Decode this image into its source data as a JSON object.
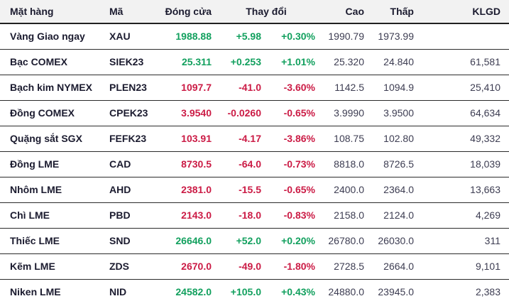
{
  "colors": {
    "up": "#12a05e",
    "down": "#cb1b45",
    "header_bg": "#f2f2f2",
    "border_dark": "#212121",
    "border_row": "#2b2b2b",
    "text_dark": "#1b1b2f",
    "text_gray": "#3d3d52"
  },
  "table": {
    "columns": [
      {
        "key": "name",
        "label": "Mặt hàng"
      },
      {
        "key": "code",
        "label": "Mã"
      },
      {
        "key": "close",
        "label": "Đóng cửa"
      },
      {
        "key": "change",
        "label": "Thay đổi"
      },
      {
        "key": "high",
        "label": "Cao"
      },
      {
        "key": "low",
        "label": "Thấp"
      },
      {
        "key": "volume",
        "label": "KLGD"
      }
    ],
    "rows": [
      {
        "name": "Vàng Giao ngay",
        "code": "XAU",
        "close": "1988.88",
        "change": "+5.98",
        "change_pct": "+0.30%",
        "high": "1990.79",
        "low": "1973.99",
        "volume": "",
        "direction": "up"
      },
      {
        "name": "Bạc COMEX",
        "code": "SIEK23",
        "close": "25.311",
        "change": "+0.253",
        "change_pct": "+1.01%",
        "high": "25.320",
        "low": "24.840",
        "volume": "61,581",
        "direction": "up"
      },
      {
        "name": "Bạch kim NYMEX",
        "code": "PLEN23",
        "close": "1097.7",
        "change": "-41.0",
        "change_pct": "-3.60%",
        "high": "1142.5",
        "low": "1094.9",
        "volume": "25,410",
        "direction": "down"
      },
      {
        "name": "Đồng COMEX",
        "code": "CPEK23",
        "close": "3.9540",
        "change": "-0.0260",
        "change_pct": "-0.65%",
        "high": "3.9990",
        "low": "3.9500",
        "volume": "64,634",
        "direction": "down"
      },
      {
        "name": "Quặng sắt SGX",
        "code": "FEFK23",
        "close": "103.91",
        "change": "-4.17",
        "change_pct": "-3.86%",
        "high": "108.75",
        "low": "102.80",
        "volume": "49,332",
        "direction": "down"
      },
      {
        "name": "Đồng LME",
        "code": "CAD",
        "close": "8730.5",
        "change": "-64.0",
        "change_pct": "-0.73%",
        "high": "8818.0",
        "low": "8726.5",
        "volume": "18,039",
        "direction": "down"
      },
      {
        "name": "Nhôm LME",
        "code": "AHD",
        "close": "2381.0",
        "change": "-15.5",
        "change_pct": "-0.65%",
        "high": "2400.0",
        "low": "2364.0",
        "volume": "13,663",
        "direction": "down"
      },
      {
        "name": "Chì LME",
        "code": "PBD",
        "close": "2143.0",
        "change": "-18.0",
        "change_pct": "-0.83%",
        "high": "2158.0",
        "low": "2124.0",
        "volume": "4,269",
        "direction": "down"
      },
      {
        "name": "Thiếc LME",
        "code": "SND",
        "close": "26646.0",
        "change": "+52.0",
        "change_pct": "+0.20%",
        "high": "26780.0",
        "low": "26030.0",
        "volume": "311",
        "direction": "up"
      },
      {
        "name": "Kẽm LME",
        "code": "ZDS",
        "close": "2670.0",
        "change": "-49.0",
        "change_pct": "-1.80%",
        "high": "2728.5",
        "low": "2664.0",
        "volume": "9,101",
        "direction": "down"
      },
      {
        "name": "Niken LME",
        "code": "NID",
        "close": "24582.0",
        "change": "+105.0",
        "change_pct": "+0.43%",
        "high": "24880.0",
        "low": "23945.0",
        "volume": "2,383",
        "direction": "up"
      }
    ]
  }
}
